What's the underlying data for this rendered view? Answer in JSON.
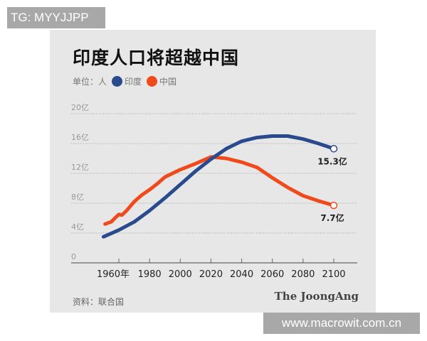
{
  "watermark_top": "TG: MYYJJPP",
  "watermark_bottom": "www.macrowit.com.cn",
  "source": "资料：联合国",
  "brand": "The JoongAng",
  "chart_data": {
    "type": "line",
    "title": "印度人口将超越中国",
    "unit_label": "单位：人",
    "ylim": [
      0,
      20
    ],
    "xlim": [
      1940,
      2110
    ],
    "yticks": [
      0,
      4,
      8,
      12,
      16,
      20
    ],
    "ytick_labels": [
      "0",
      "4亿",
      "8亿",
      "12亿",
      "16亿",
      "20亿"
    ],
    "xticks": [
      1960,
      1980,
      2000,
      2020,
      2040,
      2060,
      2080,
      2100
    ],
    "xtick_labels": [
      "1960年",
      "1980",
      "2000",
      "2020",
      "2040",
      "2060",
      "2080",
      "2100"
    ],
    "grid": true,
    "legend_position": "top-left",
    "series": [
      {
        "name": "印度",
        "color": "#2a4a8e",
        "x": [
          1950,
          1960,
          1970,
          1980,
          1990,
          2000,
          2010,
          2020,
          2030,
          2040,
          2050,
          2060,
          2065,
          2070,
          2080,
          2090,
          2100
        ],
        "y": [
          3.5,
          4.4,
          5.5,
          7.0,
          8.7,
          10.5,
          12.3,
          13.9,
          15.3,
          16.3,
          16.8,
          17.0,
          17.0,
          17.0,
          16.6,
          16.0,
          15.3
        ],
        "end_label": "15.3亿"
      },
      {
        "name": "中国",
        "color": "#f04a1c",
        "x": [
          1951,
          1955,
          1958,
          1960,
          1962,
          1965,
          1970,
          1975,
          1980,
          1985,
          1990,
          1995,
          2000,
          2010,
          2020,
          2030,
          2040,
          2050,
          2060,
          2070,
          2080,
          2090,
          2100
        ],
        "y": [
          5.2,
          5.5,
          6.1,
          6.5,
          6.4,
          7.0,
          8.2,
          9.1,
          9.8,
          10.6,
          11.5,
          12.0,
          12.5,
          13.3,
          14.2,
          14.0,
          13.5,
          12.8,
          11.4,
          10.1,
          9.0,
          8.3,
          7.7
        ],
        "end_label": "7.7亿"
      }
    ]
  }
}
